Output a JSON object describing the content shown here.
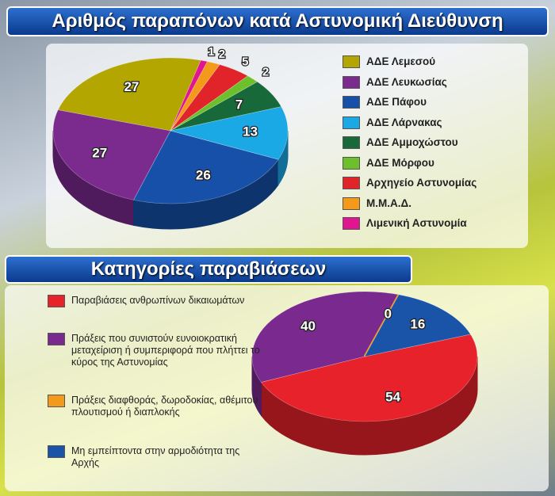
{
  "chart_data": [
    {
      "type": "pie",
      "title": "Αριθμός παραπόνων κατά Αστυνομική Διεύθυνση",
      "categories": [
        "ΑΔΕ Λεμεσού",
        "ΑΔΕ Λευκωσίας",
        "ΑΔΕ Πάφου",
        "ΑΔΕ Λάρνακας",
        "ΑΔΕ Αμμοχώστου",
        "ΑΔΕ Μόρφου",
        "Αρχηγείο Αστυνομίας",
        "Μ.Μ.Α.Δ.",
        "Λιμενική Αστυνομία"
      ],
      "values": [
        27,
        27,
        26,
        13,
        7,
        2,
        5,
        2,
        1
      ],
      "colors": [
        "#b3a600",
        "#7b2a8e",
        "#1650a8",
        "#1ba9e6",
        "#17693a",
        "#6cc02c",
        "#e0242a",
        "#f39a1a",
        "#e0158f"
      ]
    },
    {
      "type": "pie",
      "title": "Κατηγορίες παραβιάσεων",
      "categories": [
        "Παραβιάσεις ανθρωπίνων δικαιωμάτων",
        "Πράξεις που συνιστούν ευνοιοκρατική μεταχείριση ή συμπεριφορά που πλήττει το κύρος της Αστυνομίας",
        "Πράξεις διαφθοράς, δωροδοκίας, αθέμιτου πλουτισμού ή διαπλοκής",
        "Μη εμπείπτοντα στην αρμοδιότητα της Αρχής"
      ],
      "values": [
        54,
        40,
        0,
        16
      ],
      "colors": [
        "#e8222a",
        "#7a2a8e",
        "#f39a1a",
        "#1a54a8"
      ]
    }
  ]
}
